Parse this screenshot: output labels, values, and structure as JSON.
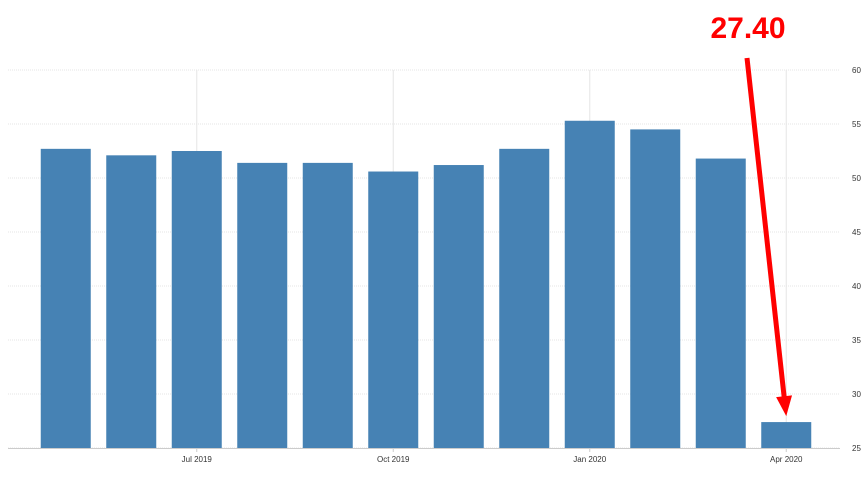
{
  "chart_data": {
    "type": "bar",
    "title": "",
    "xlabel": "",
    "ylabel": "",
    "ylim": [
      25,
      60
    ],
    "y_ticks": [
      25,
      30,
      35,
      40,
      45,
      50,
      55,
      60
    ],
    "y_tick_labels": [
      "25",
      "30",
      "35",
      "40",
      "45",
      "50",
      "55",
      "60"
    ],
    "y_axis_side": "right",
    "grid": true,
    "categories": [
      "May 2019",
      "Jun 2019",
      "Jul 2019",
      "Aug 2019",
      "Sep 2019",
      "Oct 2019",
      "Nov 2019",
      "Dec 2019",
      "Jan 2020",
      "Feb 2020",
      "Mar 2020",
      "Apr 2020"
    ],
    "x_tick_labels": [
      {
        "category": "Jul 2019",
        "label": "Jul 2019"
      },
      {
        "category": "Oct 2019",
        "label": "Oct 2019"
      },
      {
        "category": "Jan 2020",
        "label": "Jan 2020"
      },
      {
        "category": "Apr 2020",
        "label": "Apr 2020"
      }
    ],
    "values": [
      52.7,
      52.1,
      52.5,
      51.4,
      51.4,
      50.6,
      51.2,
      52.7,
      55.3,
      54.5,
      51.8,
      27.4
    ],
    "bar_color": "#4682b4",
    "annotation": {
      "text": "27.40",
      "category": "Apr 2020",
      "value": 27.4,
      "color": "#ff0000"
    }
  }
}
